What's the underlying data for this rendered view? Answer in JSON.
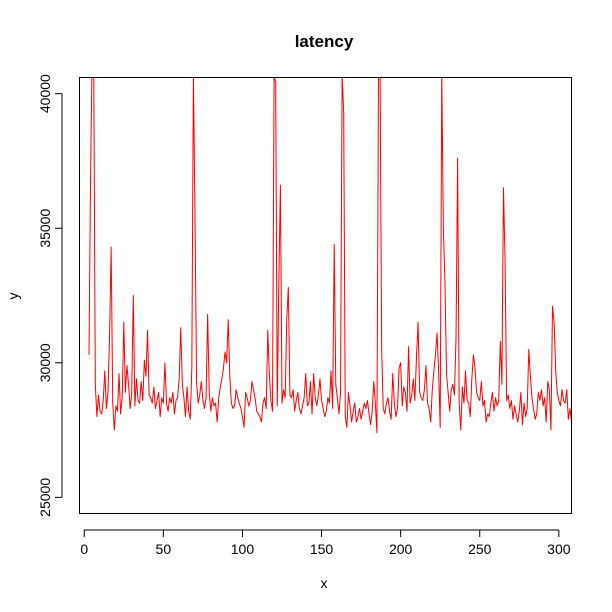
{
  "chart_data": {
    "type": "line",
    "title": "latency",
    "xlabel": "x",
    "ylabel": "y",
    "xlim": [
      -3,
      308
    ],
    "ylim": [
      24400,
      40600
    ],
    "x_ticks": [
      0,
      50,
      100,
      150,
      200,
      250,
      300
    ],
    "y_ticks": [
      25000,
      30000,
      35000,
      40000
    ],
    "grid": false,
    "series": [
      {
        "color": "#ff0000",
        "x_start": 3,
        "x_step": 1,
        "values": [
          30300,
          37000,
          41500,
          40800,
          29200,
          28000,
          28800,
          28200,
          28100,
          28600,
          29700,
          28300,
          28900,
          31000,
          34300,
          28500,
          27500,
          28400,
          28200,
          29600,
          28100,
          28700,
          31500,
          28900,
          29900,
          29200,
          28300,
          28900,
          32500,
          28400,
          29400,
          28600,
          28500,
          29300,
          28600,
          30100,
          29500,
          31200,
          28800,
          28700,
          28500,
          29100,
          28300,
          28600,
          28900,
          28000,
          28700,
          28500,
          30000,
          28500,
          28200,
          28700,
          28500,
          28900,
          28100,
          28600,
          28700,
          29400,
          31300,
          29200,
          28700,
          28000,
          29100,
          28200,
          27900,
          29800,
          40700,
          35500,
          29300,
          28500,
          28800,
          29300,
          28600,
          28300,
          28700,
          31800,
          28900,
          28200,
          28700,
          28400,
          28500,
          27800,
          28700,
          29100,
          29400,
          29800,
          30400,
          30000,
          31600,
          29500,
          28500,
          28300,
          28400,
          29000,
          28700,
          28500,
          28300,
          28000,
          27600,
          28900,
          28700,
          28400,
          28600,
          29300,
          29000,
          28700,
          28200,
          28100,
          28000,
          27800,
          28500,
          28700,
          28300,
          31200,
          29600,
          28600,
          28200,
          40700,
          40400,
          28400,
          33000,
          36600,
          28500,
          29000,
          28700,
          31600,
          32800,
          28800,
          28700,
          29000,
          28200,
          28600,
          28900,
          28300,
          28100,
          28400,
          28700,
          29600,
          28400,
          28500,
          29300,
          28100,
          29600,
          28700,
          28400,
          28800,
          29400,
          28600,
          28300,
          28000,
          28200,
          28700,
          28500,
          29700,
          28300,
          34400,
          29200,
          28700,
          28100,
          28900,
          40700,
          39300,
          28000,
          27600,
          28900,
          28400,
          27800,
          28200,
          28500,
          27800,
          28000,
          28300,
          27900,
          28200,
          28500,
          28300,
          28600,
          28100,
          27700,
          28200,
          29300,
          28500,
          27400,
          40700,
          40700,
          30500,
          28300,
          28100,
          28500,
          28700,
          28200,
          27900,
          29600,
          28500,
          28000,
          28300,
          29800,
          30000,
          28400,
          29100,
          28900,
          28200,
          30600,
          28500,
          28800,
          29400,
          28600,
          30200,
          31500,
          28900,
          28700,
          28600,
          29000,
          29900,
          28500,
          28300,
          27800,
          29000,
          29700,
          30300,
          31100,
          29700,
          27600,
          40700,
          35000,
          33000,
          29600,
          28900,
          28200,
          29000,
          29200,
          28800,
          30900,
          37600,
          28500,
          27500,
          29100,
          28500,
          29700,
          28600,
          28500,
          28000,
          29400,
          30300,
          29800,
          28900,
          28700,
          28600,
          29300,
          28400,
          28600,
          27800,
          28100,
          28000,
          28500,
          28900,
          28200,
          28700,
          28400,
          28600,
          30800,
          29200,
          36500,
          33800,
          28600,
          28800,
          28300,
          28600,
          27900,
          28400,
          28100,
          27800,
          28200,
          28900,
          27700,
          28500,
          28000,
          28300,
          30500,
          29500,
          28700,
          28300,
          27900,
          28100,
          28900,
          28600,
          29000,
          28400,
          28700,
          27800,
          29300,
          29000,
          27500,
          32100,
          31500,
          29700,
          28900,
          28600,
          28400,
          29000,
          28600,
          28500,
          29000,
          27900,
          28300,
          27800
        ]
      }
    ]
  }
}
